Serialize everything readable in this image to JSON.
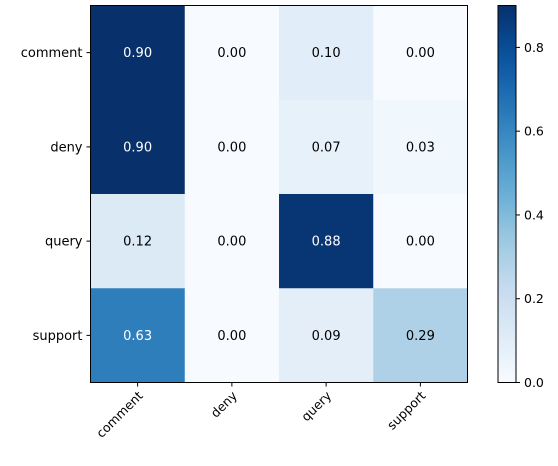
{
  "chart_data": {
    "type": "heatmap",
    "title": "",
    "xlabel": "",
    "ylabel": "",
    "x_categories": [
      "comment",
      "deny",
      "query",
      "support"
    ],
    "y_categories": [
      "comment",
      "deny",
      "query",
      "support"
    ],
    "values": [
      [
        0.9,
        0.0,
        0.1,
        0.0
      ],
      [
        0.9,
        0.0,
        0.07,
        0.03
      ],
      [
        0.12,
        0.0,
        0.88,
        0.0
      ],
      [
        0.63,
        0.0,
        0.09,
        0.29
      ]
    ],
    "cell_labels": [
      [
        "0.90",
        "0.00",
        "0.10",
        "0.00"
      ],
      [
        "0.90",
        "0.00",
        "0.07",
        "0.03"
      ],
      [
        "0.12",
        "0.00",
        "0.88",
        "0.00"
      ],
      [
        "0.63",
        "0.00",
        "0.09",
        "0.29"
      ]
    ],
    "colormap": "Blues",
    "vmin": 0.0,
    "vmax": 0.9,
    "colorbar": {
      "ticks": [
        0.0,
        0.2,
        0.4,
        0.6,
        0.8
      ],
      "tick_labels": [
        "0.0",
        "0.2",
        "0.4",
        "0.6",
        "0.8"
      ]
    },
    "x_tick_rotation": 45,
    "grid": false
  }
}
